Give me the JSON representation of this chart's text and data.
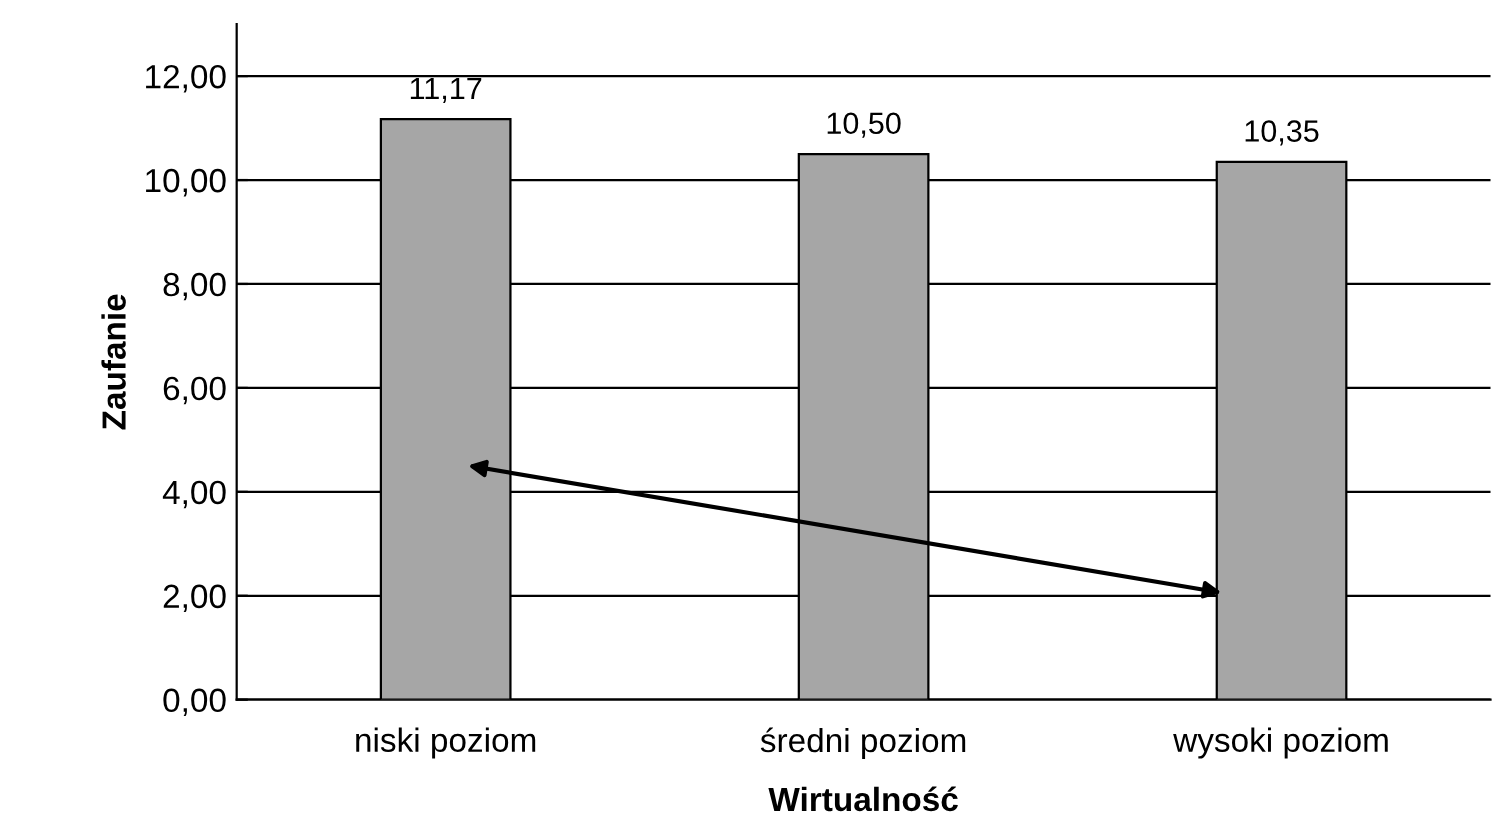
{
  "chart_data": {
    "type": "bar",
    "xlabel": "Wirtualność",
    "ylabel": "Zaufanie",
    "categories": [
      "niski poziom",
      "średni poziom",
      "wysoki poziom"
    ],
    "values": [
      11.17,
      10.5,
      10.35
    ],
    "value_labels": [
      "11,17",
      "10,50",
      "10,35"
    ],
    "color": "#a6a6a6",
    "ylim": [
      0,
      13
    ],
    "yticks": [
      {
        "value": 0,
        "label": "0,00"
      },
      {
        "value": 2,
        "label": "2,00"
      },
      {
        "value": 4,
        "label": "4,00"
      },
      {
        "value": 6,
        "label": "6,00"
      },
      {
        "value": 8,
        "label": "8,00"
      },
      {
        "value": 10,
        "label": "10,00"
      },
      {
        "value": 12,
        "label": "12,00"
      }
    ],
    "grid": "y"
  }
}
